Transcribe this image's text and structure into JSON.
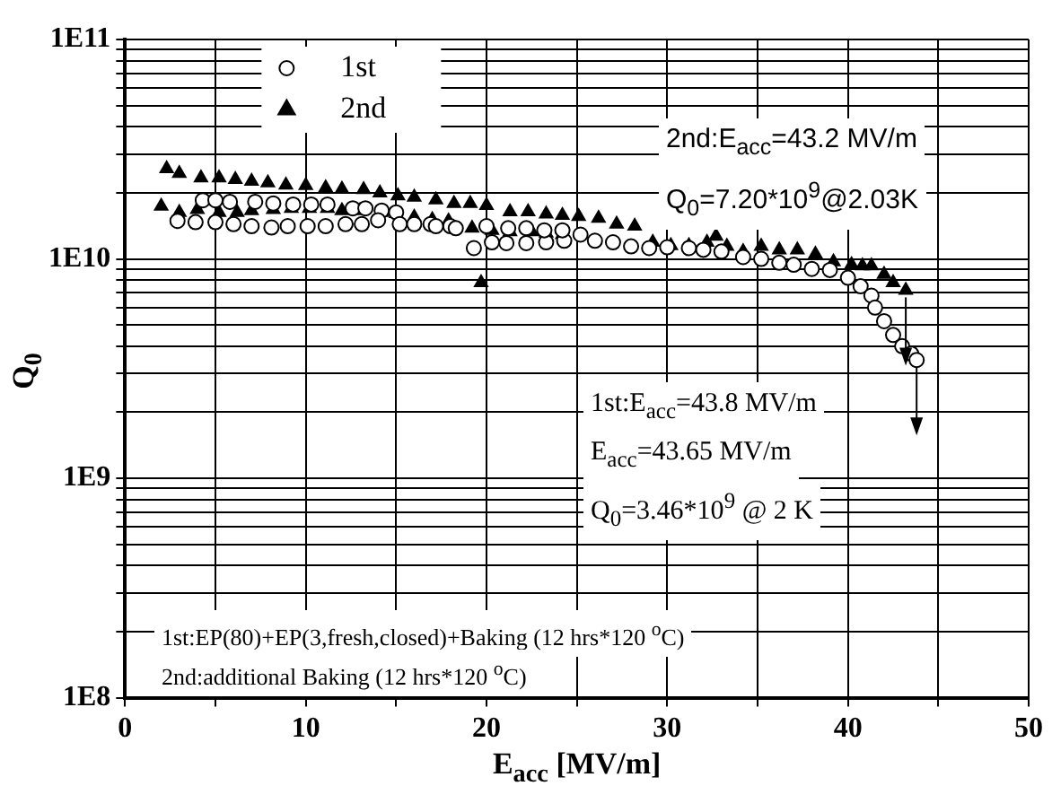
{
  "chart_data": {
    "type": "scatter",
    "xlabel": "E$_{acc}$ [MV/m]",
    "ylabel": "Q$_{0}$",
    "xlim": [
      0,
      50
    ],
    "xticks": [
      0,
      {
        "value": 5,
        "label": null
      },
      10,
      {
        "value": 15,
        "label": null
      },
      20,
      {
        "value": 25,
        "label": null
      },
      30,
      {
        "value": 35,
        "label": null
      },
      40,
      {
        "value": 45,
        "label": null
      },
      50
    ],
    "ylim": [
      100000000.0,
      100000000000.0
    ],
    "log": "y",
    "yticks": [
      {
        "value": 100000000.0,
        "label": "1E8"
      },
      {
        "value": 200000000.0,
        "label": null
      },
      {
        "value": 300000000.0,
        "label": null
      },
      {
        "value": 400000000.0,
        "label": null
      },
      {
        "value": 500000000.0,
        "label": null
      },
      {
        "value": 600000000.0,
        "label": null
      },
      {
        "value": 700000000.0,
        "label": null
      },
      {
        "value": 800000000.0,
        "label": null
      },
      {
        "value": 900000000.0,
        "label": null
      },
      {
        "value": 1000000000.0,
        "label": "1E9"
      },
      {
        "value": 2000000000.0,
        "label": null
      },
      {
        "value": 3000000000.0,
        "label": null
      },
      {
        "value": 4000000000.0,
        "label": null
      },
      {
        "value": 5000000000.0,
        "label": null
      },
      {
        "value": 6000000000.0,
        "label": null
      },
      {
        "value": 7000000000.0,
        "label": null
      },
      {
        "value": 8000000000.0,
        "label": null
      },
      {
        "value": 9000000000.0,
        "label": null
      },
      {
        "value": 10000000000.0,
        "label": "1E10"
      },
      {
        "value": 20000000000.0,
        "label": null
      },
      {
        "value": 30000000000.0,
        "label": null
      },
      {
        "value": 40000000000.0,
        "label": null
      },
      {
        "value": 50000000000.0,
        "label": null
      },
      {
        "value": 60000000000.0,
        "label": null
      },
      {
        "value": 70000000000.0,
        "label": null
      },
      {
        "value": 80000000000.0,
        "label": null
      },
      {
        "value": 90000000000.0,
        "label": null
      },
      {
        "value": 100000000000.0,
        "label": "1E11"
      }
    ],
    "grid": true,
    "legend": "top left",
    "series": [
      {
        "name": "1st",
        "color": "#000000",
        "marker": "circle",
        "x": [
          4.3,
          5.0,
          5.8,
          7.2,
          8.2,
          9.3,
          10.3,
          11.2,
          12.6,
          13.3,
          14.2,
          15.0,
          2.9,
          3.9,
          5.0,
          6.0,
          7.0,
          8.1,
          9.0,
          10.1,
          11.1,
          12.2,
          13.1,
          14.0,
          15.2,
          16.0,
          16.9,
          18.0,
          19.3,
          20.3,
          21.1,
          22.2,
          23.3,
          24.3,
          17.2,
          18.3,
          20.0,
          21.2,
          22.2,
          23.2,
          24.2,
          25.2,
          26.0,
          27.0,
          28.0,
          29.0,
          30.0,
          31.2,
          32.0,
          33.0,
          34.2,
          35.2,
          36.2,
          37.0,
          38.0,
          39.0,
          40.0,
          40.7,
          41.3,
          41.5,
          42.0,
          42.5,
          43.0,
          43.5,
          43.8
        ],
        "values": [
          18500000000.0,
          18500000000.0,
          18200000000.0,
          18200000000.0,
          17900000000.0,
          17700000000.0,
          17700000000.0,
          17700000000.0,
          17000000000.0,
          17000000000.0,
          16600000000.0,
          16300000000.0,
          14900000000.0,
          14700000000.0,
          14700000000.0,
          14400000000.0,
          14100000000.0,
          13900000000.0,
          14100000000.0,
          14100000000.0,
          14100000000.0,
          14400000000.0,
          14400000000.0,
          15000000000.0,
          14400000000.0,
          14400000000.0,
          14400000000.0,
          14100000000.0,
          11200000000.0,
          11900000000.0,
          11800000000.0,
          11800000000.0,
          11900000000.0,
          12100000000.0,
          14100000000.0,
          13800000000.0,
          14100000000.0,
          13800000000.0,
          13800000000.0,
          13500000000.0,
          13500000000.0,
          12900000000.0,
          12100000000.0,
          11900000000.0,
          11400000000.0,
          11200000000.0,
          11300000000.0,
          11200000000.0,
          11000000000.0,
          10800000000.0,
          10200000000.0,
          10000000000.0,
          9600000000.0,
          9400000000.0,
          9000000000.0,
          8900000000.0,
          8200000000.0,
          7500000000.0,
          6800000000.0,
          6000000000.0,
          5200000000.0,
          4500000000.0,
          4000000000.0,
          3700000000.0,
          3460000000.0
        ]
      },
      {
        "name": "2nd",
        "color": "#000000",
        "marker": "triangle",
        "x": [
          2.3,
          3.0,
          4.2,
          5.2,
          6.1,
          7.0,
          7.9,
          8.9,
          10.0,
          11.1,
          12.0,
          13.2,
          14.1,
          15.1,
          16.0,
          17.2,
          18.2,
          19.1,
          20.0,
          21.3,
          22.3,
          23.3,
          24.2,
          2.0,
          3.0,
          4.0,
          5.2,
          6.2,
          7.0,
          8.2,
          9.2,
          10.2,
          11.2,
          12.0,
          13.0,
          14.2,
          15.0,
          16.0,
          17.0,
          17.9,
          19.2,
          20.3,
          21.3,
          22.5,
          23.3,
          24.2,
          19.7,
          25.1,
          26.2,
          27.2,
          28.2,
          29.2,
          30.2,
          31.2,
          32.2,
          32.7,
          33.3,
          34.2,
          35.2,
          36.2,
          37.2,
          38.2,
          39.2,
          40.2,
          40.8,
          41.3,
          42.0,
          42.5,
          43.2
        ],
        "values": [
          25800000000.0,
          24500000000.0,
          23400000000.0,
          23400000000.0,
          23000000000.0,
          22600000000.0,
          22200000000.0,
          21700000000.0,
          21600000000.0,
          21100000000.0,
          20800000000.0,
          20700000000.0,
          20000000000.0,
          19400000000.0,
          19100000000.0,
          18600000000.0,
          17900000000.0,
          17900000000.0,
          17500000000.0,
          16400000000.0,
          16400000000.0,
          16000000000.0,
          15800000000.0,
          17400000000.0,
          16300000000.0,
          16800000000.0,
          16300000000.0,
          16300000000.0,
          16600000000.0,
          16800000000.0,
          17000000000.0,
          17000000000.0,
          17000000000.0,
          16600000000.0,
          16600000000.0,
          16300000000.0,
          16100000000.0,
          15500000000.0,
          15100000000.0,
          14900000000.0,
          13800000000.0,
          13500000000.0,
          13300000000.0,
          13300000000.0,
          13100000000.0,
          12900000000.0,
          7800000000.0,
          15600000000.0,
          15300000000.0,
          14400000000.0,
          14100000000.0,
          11900000000.0,
          11500000000.0,
          11500000000.0,
          11900000000.0,
          12700000000.0,
          11400000000.0,
          10800000000.0,
          11400000000.0,
          11000000000.0,
          11000000000.0,
          10500000000.0,
          9700000000.0,
          9400000000.0,
          9300000000.0,
          9300000000.0,
          8500000000.0,
          7800000000.0,
          7200000000.0
        ]
      }
    ],
    "annotations": [
      "2nd:E$_{acc}$=43.2 MV/m",
      "Q$_{0}$=7.20*10$^{9}$@2.03K",
      "1st:E$_{acc}$=43.8 MV/m",
      "E$_{acc}$=43.65 MV/m",
      "Q$_{0}$=3.46*10$^{9}$ @ 2 K",
      "1st:EP(80)+EP(3,fresh,closed)+Baking (12 hrs*120 $^{o}$C)",
      "2nd:additional Baking (12 hrs*120 $^{o}$C)"
    ]
  }
}
